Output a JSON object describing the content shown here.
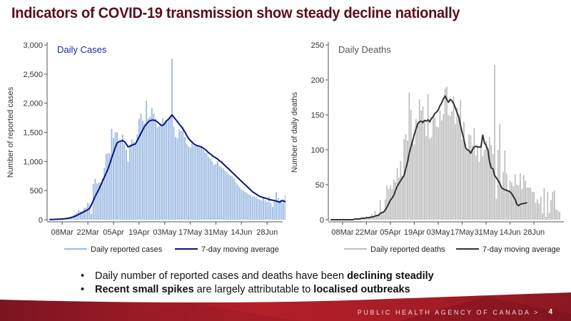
{
  "slide": {
    "title": "Indicators of COVID-19 transmission show steady decline nationally",
    "bullets": [
      {
        "parts": [
          {
            "text": "Daily number of reported cases and deaths have been ",
            "bold": false
          },
          {
            "text": "declining steadily",
            "bold": true
          }
        ]
      },
      {
        "parts": [
          {
            "text": "Recent small spikes",
            "bold": true
          },
          {
            "text": " are largely attributable to ",
            "bold": false
          },
          {
            "text": "localised outbreaks",
            "bold": true
          }
        ]
      }
    ],
    "bullet_glyph": "•",
    "footer": {
      "agency": "PUBLIC HEALTH AGENCY OF CANADA",
      "separator": ">",
      "page": "4"
    },
    "colors": {
      "title": "#5a0f1c",
      "footer_red": "#b3202a",
      "footer_dark": "#7a1520"
    }
  },
  "chart_data": [
    {
      "type": "bar",
      "title": "Daily Cases",
      "xlabel": "",
      "ylabel": "Number of reported cases",
      "ylim": [
        0,
        3000
      ],
      "yticks": [
        0,
        500,
        1000,
        1500,
        2000,
        2500,
        3000
      ],
      "ytick_labels": [
        "0",
        "500",
        "1,000",
        "1,500",
        "2,000",
        "2,500",
        "3,000"
      ],
      "x_start": "01Mar",
      "xticks_day_index": [
        7,
        21,
        35,
        49,
        63,
        77,
        91,
        105,
        119
      ],
      "xtick_labels": [
        "08Mar",
        "22Mar",
        "05Apr",
        "19Apr",
        "03May",
        "17May",
        "31May",
        "14Jun",
        "28Jun"
      ],
      "legend": {
        "placement": "bottom",
        "entries": [
          "Daily reported cases",
          "7-day moving average"
        ]
      },
      "grid": false,
      "colors": {
        "bars": "#9dbbe3",
        "line": "#0a1580",
        "title": "#1a2a9a"
      },
      "series": [
        {
          "name": "Daily reported cases",
          "type": "bar",
          "values": [
            4,
            5,
            5,
            6,
            8,
            9,
            12,
            15,
            20,
            25,
            30,
            40,
            55,
            75,
            95,
            120,
            170,
            140,
            150,
            200,
            210,
            290,
            260,
            100,
            610,
            700,
            620,
            640,
            630,
            710,
            890,
            1130,
            1140,
            1140,
            1560,
            1400,
            1500,
            1500,
            1340,
            1360,
            1460,
            1300,
            1200,
            1000,
            1280,
            1380,
            1340,
            1310,
            1460,
            1730,
            1820,
            1700,
            1650,
            2040,
            1740,
            1770,
            1920,
            1820,
            1740,
            1590,
            1610,
            1650,
            1740,
            1680,
            1710,
            1720,
            1760,
            2760,
            1600,
            1420,
            1400,
            1550,
            1520,
            1600,
            1420,
            1300,
            1260,
            1240,
            1300,
            1270,
            1260,
            1280,
            1240,
            1260,
            1200,
            1150,
            1140,
            1080,
            1050,
            1000,
            940,
            960,
            1000,
            930,
            900,
            880,
            840,
            820,
            780,
            760,
            740,
            700,
            640,
            600,
            560,
            520,
            500,
            480,
            460,
            440,
            420,
            400,
            400,
            380,
            360,
            340,
            330,
            370,
            330,
            300,
            400,
            290,
            220,
            330,
            470,
            370,
            330,
            300,
            350,
            420
          ]
        },
        {
          "name": "7-day moving average",
          "type": "line",
          "values": [
            4,
            4,
            5,
            6,
            7,
            8,
            10,
            12,
            15,
            19,
            24,
            30,
            38,
            48,
            60,
            75,
            92,
            108,
            122,
            138,
            155,
            170,
            200,
            260,
            330,
            400,
            460,
            520,
            590,
            660,
            730,
            800,
            870,
            960,
            1060,
            1150,
            1240,
            1320,
            1340,
            1350,
            1360,
            1340,
            1300,
            1250,
            1260,
            1280,
            1290,
            1300,
            1360,
            1420,
            1480,
            1540,
            1600,
            1640,
            1680,
            1700,
            1710,
            1710,
            1700,
            1680,
            1650,
            1620,
            1620,
            1650,
            1700,
            1720,
            1760,
            1800,
            1760,
            1720,
            1680,
            1640,
            1600,
            1560,
            1510,
            1450,
            1400,
            1360,
            1330,
            1300,
            1280,
            1270,
            1260,
            1250,
            1230,
            1210,
            1180,
            1150,
            1130,
            1100,
            1080,
            1060,
            1040,
            1010,
            990,
            960,
            930,
            900,
            870,
            840,
            810,
            780,
            750,
            720,
            690,
            660,
            630,
            600,
            570,
            540,
            510,
            480,
            460,
            440,
            420,
            400,
            390,
            380,
            370,
            360,
            350,
            340,
            335,
            330,
            320,
            310,
            300,
            330,
            320,
            310,
            320,
            310
          ]
        }
      ]
    },
    {
      "type": "bar",
      "title": "Daily Deaths",
      "xlabel": "",
      "ylabel": "Number of daily deaths",
      "ylim": [
        0,
        250
      ],
      "yticks": [
        0,
        50,
        100,
        150,
        200,
        250
      ],
      "ytick_labels": [
        "0",
        "50",
        "100",
        "150",
        "200",
        "250"
      ],
      "x_start": "01Mar",
      "xticks_day_index": [
        7,
        21,
        35,
        49,
        63,
        77,
        91,
        105,
        119
      ],
      "xtick_labels": [
        "08Mar",
        "22Mar",
        "05Apr",
        "19Apr",
        "03May",
        "17May",
        "31May",
        "14Jun",
        "28Jun"
      ],
      "legend": {
        "placement": "bottom",
        "entries": [
          "Daily reported deaths",
          "7-day moving average"
        ]
      },
      "grid": false,
      "colors": {
        "bars": "#bdbdbd",
        "line": "#333333",
        "title": "#555555"
      },
      "series": [
        {
          "name": "Daily reported deaths",
          "type": "bar",
          "values": [
            0,
            0,
            0,
            0,
            0,
            0,
            0,
            0,
            0,
            0,
            0,
            0,
            0,
            0,
            1,
            1,
            2,
            1,
            2,
            3,
            2,
            4,
            3,
            5,
            8,
            4,
            13,
            6,
            5,
            28,
            9,
            12,
            29,
            49,
            44,
            49,
            44,
            57,
            54,
            74,
            60,
            84,
            63,
            115,
            122,
            113,
            182,
            157,
            115,
            108,
            144,
            140,
            172,
            156,
            162,
            140,
            120,
            180,
            116,
            118,
            150,
            146,
            133,
            132,
            156,
            142,
            151,
            188,
            190,
            150,
            148,
            155,
            176,
            137,
            160,
            144,
            171,
            115,
            140,
            108,
            99,
            122,
            121,
            106,
            131,
            92,
            106,
            83,
            109,
            91,
            100,
            113,
            102,
            118,
            107,
            94,
            221,
            30,
            100,
            137,
            47,
            68,
            99,
            66,
            40,
            56,
            53,
            48,
            65,
            50,
            49,
            66,
            44,
            64,
            56,
            46,
            46,
            46,
            40,
            40,
            24,
            29,
            23,
            33,
            9,
            45,
            4,
            40,
            10,
            28,
            40,
            42,
            15,
            13,
            11
          ]
        },
        {
          "name": "7-day moving average",
          "type": "line",
          "values": [
            0,
            0,
            0,
            0,
            0,
            0,
            0,
            0,
            0,
            0,
            0,
            0,
            0,
            0,
            1,
            1,
            1,
            1,
            2,
            2,
            2,
            3,
            3,
            3,
            4,
            4,
            5,
            6,
            6,
            9,
            10,
            11,
            14,
            18,
            23,
            28,
            31,
            35,
            42,
            48,
            52,
            56,
            60,
            63,
            73,
            82,
            95,
            104,
            113,
            122,
            130,
            137,
            140,
            141,
            139,
            142,
            141,
            143,
            140,
            145,
            147,
            152,
            154,
            157,
            163,
            167,
            173,
            177,
            172,
            168,
            172,
            170,
            166,
            160,
            153,
            147,
            135,
            125,
            115,
            103,
            100,
            99,
            95,
            100,
            104,
            105,
            104,
            104,
            104,
            121,
            110,
            106,
            100,
            83,
            74,
            73,
            63,
            60,
            56,
            52,
            46,
            44,
            43,
            42,
            41,
            40,
            37,
            33,
            29,
            22,
            20,
            22,
            23,
            23,
            24,
            24
          ]
        }
      ]
    }
  ]
}
